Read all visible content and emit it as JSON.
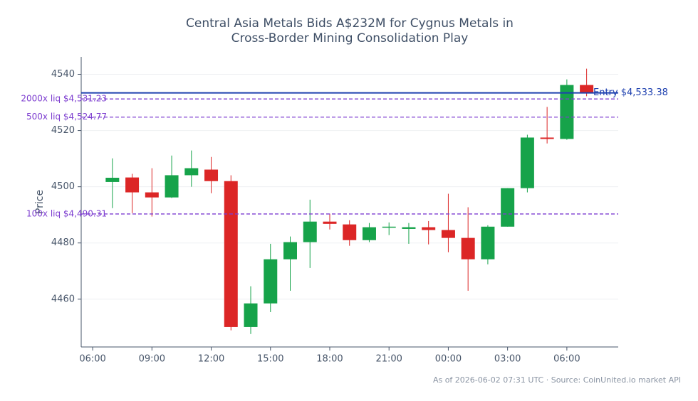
{
  "chart_data": {
    "type": "candlestick",
    "title": [
      "Central Asia Metals Bids A$232M for Cygnus Metals in",
      "Cross-Border Mining Consolidation Play"
    ],
    "y_label": "Price",
    "footer": "As of 2026-06-02 07:31 UTC · Source: CoinUnited.io market API",
    "x": [
      "07:00",
      "08:00",
      "09:00",
      "10:00",
      "11:00",
      "12:00",
      "13:00",
      "14:00",
      "15:00",
      "16:00",
      "17:00",
      "18:00",
      "19:00",
      "20:00",
      "21:00",
      "22:00",
      "23:00",
      "00:00",
      "01:00",
      "02:00",
      "03:00",
      "04:00",
      "05:00",
      "06:00",
      "07:00"
    ],
    "open": [
      4501.7,
      4503.3,
      4498.0,
      4496.2,
      4504.1,
      4506.1,
      4502.0,
      4450.1,
      4458.5,
      4474.2,
      4480.3,
      4487.6,
      4486.6,
      4481.0,
      4485.6,
      4485.0,
      4485.6,
      4484.6,
      4481.8,
      4474.2,
      4485.8,
      4499.5,
      4517.5,
      4517.0,
      4536.2
    ],
    "high": [
      4510.1,
      4504.6,
      4506.6,
      4511.1,
      4512.9,
      4510.6,
      4504.1,
      4464.6,
      4479.7,
      4482.3,
      4495.4,
      4490.4,
      4488.1,
      4487.1,
      4487.3,
      4487.1,
      4487.8,
      4497.5,
      4492.7,
      4486.3,
      4499.5,
      4518.5,
      4528.4,
      4538.2,
      4542.0
    ],
    "low": [
      4492.4,
      4490.6,
      4489.4,
      4496.0,
      4500.0,
      4497.7,
      4448.9,
      4447.6,
      4455.4,
      4463.0,
      4471.1,
      4484.8,
      4479.0,
      4480.3,
      4482.8,
      4479.7,
      4479.5,
      4476.7,
      4463.0,
      4472.4,
      4485.8,
      4498.0,
      4515.4,
      4516.7,
      4532.2
    ],
    "close": [
      4503.2,
      4498.0,
      4496.2,
      4504.1,
      4506.6,
      4502.0,
      4450.1,
      4458.5,
      4474.2,
      4480.3,
      4487.6,
      4486.8,
      4481.0,
      4485.6,
      4485.8,
      4485.6,
      4484.6,
      4481.8,
      4474.2,
      4485.8,
      4499.5,
      4517.5,
      4517.0,
      4536.2,
      4533.4
    ],
    "up_color": "#16a34a",
    "down_color": "#dc2626",
    "ylim": [
      4443.0,
      4546.2
    ],
    "yticks": [
      4460,
      4480,
      4500,
      4520,
      4540
    ],
    "xticks": [
      "06:00",
      "09:00",
      "12:00",
      "15:00",
      "18:00",
      "21:00",
      "00:00",
      "03:00",
      "06:00"
    ],
    "grid": true,
    "lines": [
      {
        "value": 4533.38,
        "label": "Entry $4,533.38",
        "color": "#1e40af",
        "style": "solid",
        "side": "right"
      },
      {
        "value": 4531.23,
        "label": "2000x liq $4,531.23",
        "color": "#7e3fd0",
        "style": "dashed",
        "side": "left"
      },
      {
        "value": 4524.77,
        "label": "500x liq $4,524.77",
        "color": "#7e3fd0",
        "style": "dashed",
        "side": "left"
      },
      {
        "value": 4490.31,
        "label": "100x liq $4,490.31",
        "color": "#7e3fd0",
        "style": "dashed",
        "side": "left"
      }
    ]
  }
}
